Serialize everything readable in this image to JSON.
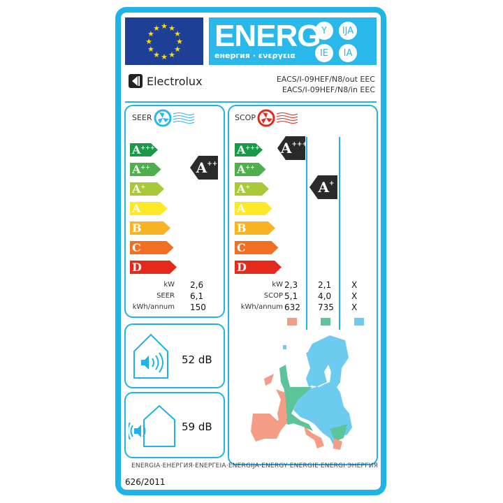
{
  "header": {
    "title": "ENERG",
    "subtitle": "енергия · ενεργεια",
    "language_suffixes": [
      "Y",
      "IJA",
      "IE",
      "IA"
    ],
    "brand": "Electrolux",
    "model_outdoor": "EACS/I-09HEF/N8/out EEC",
    "model_indoor": "EACS/I-09HEF/N8/in EEC"
  },
  "scale": {
    "classes": [
      {
        "letter": "A",
        "plus": "+++",
        "color": "#1a9a48"
      },
      {
        "letter": "A",
        "plus": "++",
        "color": "#4db04a"
      },
      {
        "letter": "A",
        "plus": "+",
        "color": "#a8c93a"
      },
      {
        "letter": "A",
        "plus": "",
        "color": "#fde829"
      },
      {
        "letter": "B",
        "plus": "",
        "color": "#f9b424"
      },
      {
        "letter": "C",
        "plus": "",
        "color": "#f26f22"
      },
      {
        "letter": "D",
        "plus": "",
        "color": "#e42a1d"
      }
    ]
  },
  "cooling": {
    "label": "SEER",
    "icon": "fan-cooling-icon",
    "rating": {
      "letter": "A",
      "plus": "++"
    },
    "rows": [
      {
        "label": "kW",
        "value": "2,6"
      },
      {
        "label": "SEER",
        "value": "6,1"
      },
      {
        "label": "kWh/annum",
        "value": "150"
      }
    ]
  },
  "heating": {
    "label": "SCOP",
    "icon": "fan-heating-icon",
    "ratings": [
      {
        "letter": "A",
        "plus": "+++"
      },
      {
        "letter": "A",
        "plus": "+"
      }
    ],
    "row_labels": [
      "kW",
      "SCOP",
      "kWh/annum"
    ],
    "columns": [
      {
        "values": [
          "2,3",
          "5,1",
          "632"
        ],
        "color": "#f59c86"
      },
      {
        "values": [
          "2,1",
          "4,0",
          "735"
        ],
        "color": "#5cc39a"
      },
      {
        "values": [
          "X",
          "X",
          "X"
        ],
        "color": "#6ccbef"
      }
    ]
  },
  "noise": {
    "indoor": "52 dB",
    "outdoor": "59 dB"
  },
  "footer": {
    "languages": "ENERGIA·ЕНЕРГИЯ·ΕΝΕΡΓΕΙΑ·ENERGIJA·ENERGY·ENERGIE·ENERGI·ЭНЕРГИЯ",
    "regulation": "626/2011"
  },
  "colors": {
    "frame": "#1eb4e8",
    "indicator": "#2a2a2a"
  }
}
